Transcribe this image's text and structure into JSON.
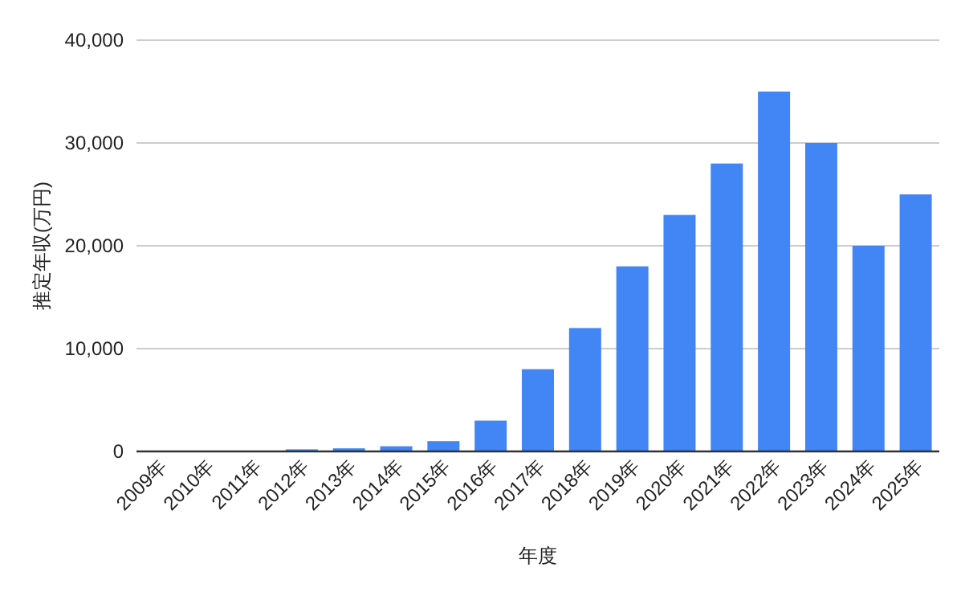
{
  "chart_data": {
    "type": "bar",
    "xlabel": "年度",
    "ylabel": "推定年収(万円)",
    "categories": [
      "2009年",
      "2010年",
      "2011年",
      "2012年",
      "2013年",
      "2014年",
      "2015年",
      "2016年",
      "2017年",
      "2018年",
      "2019年",
      "2020年",
      "2021年",
      "2022年",
      "2023年",
      "2024年",
      "2025年"
    ],
    "values": [
      0,
      0,
      0,
      200,
      300,
      500,
      1000,
      3000,
      8000,
      12000,
      18000,
      23000,
      28000,
      35000,
      30000,
      20000,
      25000
    ],
    "color": "#4285f4",
    "ylim": [
      0,
      40000
    ],
    "yticks": [
      {
        "value": 0,
        "label": "0"
      },
      {
        "value": 10000,
        "label": "10,000"
      },
      {
        "value": 20000,
        "label": "20,000"
      },
      {
        "value": 30000,
        "label": "30,000"
      },
      {
        "value": 40000,
        "label": "40,000"
      }
    ],
    "grid": "y"
  }
}
